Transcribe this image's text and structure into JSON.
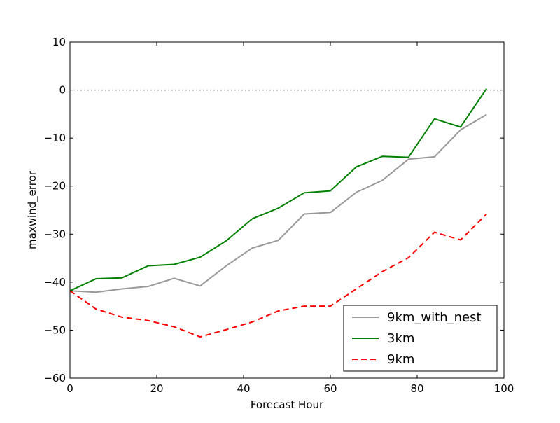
{
  "chart_data": {
    "type": "line",
    "title": "",
    "xlabel": "Forecast Hour",
    "ylabel": "maxwind_error",
    "xlim": [
      0,
      100
    ],
    "ylim": [
      -60,
      10
    ],
    "xticks": [
      0,
      20,
      40,
      60,
      80,
      100
    ],
    "yticks": [
      -60,
      -50,
      -40,
      -30,
      -20,
      -10,
      0,
      10
    ],
    "xtick_labels": [
      "0",
      "20",
      "40",
      "60",
      "80",
      "100"
    ],
    "ytick_labels": [
      "−60",
      "−50",
      "−40",
      "−30",
      "−20",
      "−10",
      "0",
      "10"
    ],
    "grid": false,
    "legend_position": "lower-right",
    "reference_line": {
      "y": 0,
      "style": "dotted",
      "color": "#999999"
    },
    "series": [
      {
        "name": "9km_with_nest",
        "color": "#999999",
        "dash": "solid",
        "x": [
          0,
          6,
          12,
          18,
          24,
          30,
          36,
          42,
          48,
          54,
          60,
          66,
          72,
          78,
          84,
          90,
          96
        ],
        "y": [
          -41.8,
          -42.1,
          -41.4,
          -40.9,
          -39.2,
          -40.8,
          -36.6,
          -32.9,
          -31.3,
          -25.8,
          -25.5,
          -21.3,
          -18.8,
          -14.4,
          -13.9,
          -8.3,
          -5.1
        ]
      },
      {
        "name": "3km",
        "color": "#008000",
        "dash": "solid",
        "x": [
          0,
          6,
          12,
          18,
          24,
          30,
          36,
          42,
          48,
          54,
          60,
          66,
          72,
          78,
          84,
          90,
          96
        ],
        "y": [
          -41.8,
          -39.3,
          -39.1,
          -36.6,
          -36.3,
          -34.8,
          -31.4,
          -26.8,
          -24.6,
          -21.4,
          -21.0,
          -16.0,
          -13.8,
          -14.0,
          -6.0,
          -7.7,
          0.3
        ]
      },
      {
        "name": "9km",
        "color": "#ff0000",
        "dash": "dashed",
        "x": [
          0,
          6,
          12,
          18,
          24,
          30,
          36,
          42,
          48,
          54,
          60,
          66,
          72,
          78,
          84,
          90,
          96
        ],
        "y": [
          -41.8,
          -45.6,
          -47.3,
          -48.0,
          -49.3,
          -51.4,
          -49.9,
          -48.3,
          -46.0,
          -45.0,
          -45.0,
          -41.4,
          -37.8,
          -34.9,
          -29.6,
          -31.2,
          -25.8
        ]
      }
    ]
  }
}
